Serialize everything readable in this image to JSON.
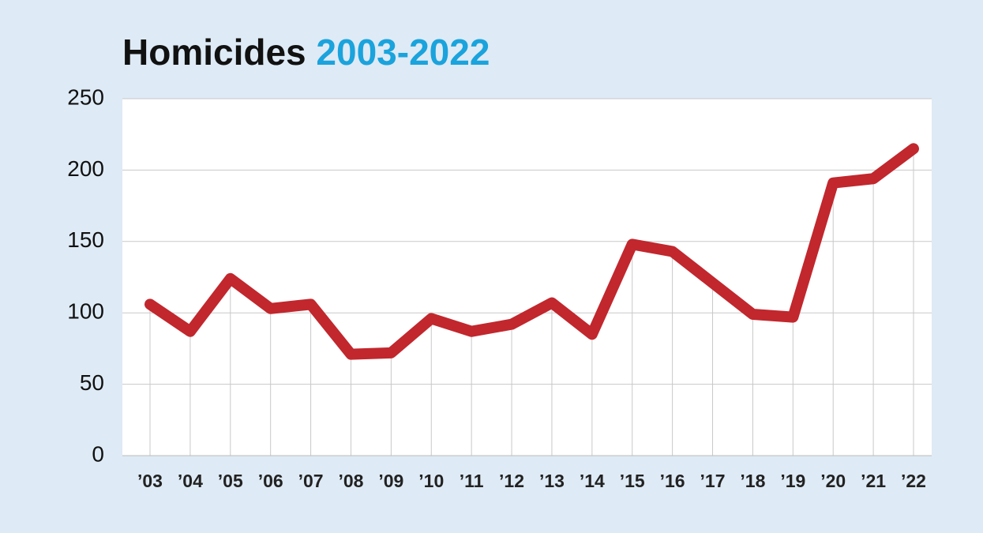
{
  "chart_data": {
    "type": "line",
    "title": "Homicides",
    "subtitle": "2003-2022",
    "categories": [
      "’03",
      "’04",
      "’05",
      "’06",
      "’07",
      "’08",
      "’09",
      "’10",
      "’11",
      "’12",
      "’13",
      "’14",
      "’15",
      "’16",
      "’17",
      "’18",
      "’19",
      "’20",
      "’21",
      "’22"
    ],
    "values": [
      106,
      87,
      124,
      103,
      106,
      71,
      72,
      96,
      87,
      92,
      107,
      85,
      148,
      143,
      121,
      99,
      97,
      191,
      194,
      215
    ],
    "color": "#c1272d",
    "title_color": "#111111",
    "subtitle_color": "#1aa3dc",
    "ylim": [
      0,
      250
    ],
    "yticks": [
      0,
      50,
      100,
      150,
      200,
      250
    ],
    "grid": true
  }
}
